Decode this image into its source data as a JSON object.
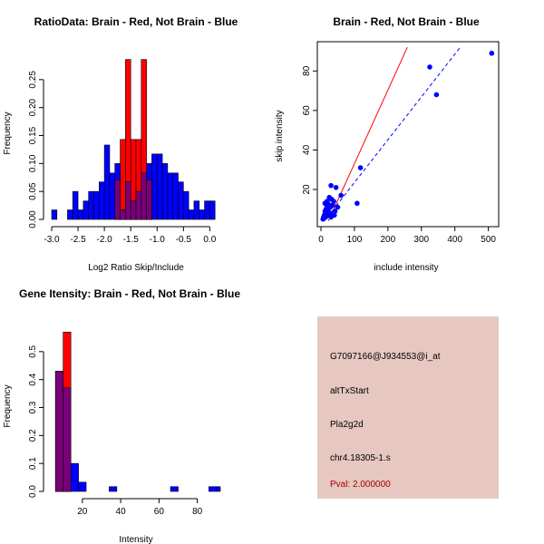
{
  "chart_data": [
    {
      "type": "bar",
      "panel": "ratio-histogram",
      "title": "RatioData: Brain - Red, Not Brain - Blue",
      "xlabel": "Log2 Ratio Skip/Include",
      "ylabel": "Frequency",
      "xlim": [
        -3.0,
        0.2
      ],
      "ylim": [
        0,
        0.3
      ],
      "xticks": [
        -3.0,
        -2.5,
        -2.0,
        -1.5,
        -1.0,
        -0.5,
        0.0
      ],
      "xtick_labels": [
        "-3.0",
        "-2.5",
        "-2.0",
        "-1.5",
        "-1.0",
        "-0.5",
        "0.0"
      ],
      "yticks": [
        0.0,
        0.05,
        0.1,
        0.15,
        0.2,
        0.25
      ],
      "ytick_labels": [
        "0.00",
        "0.05",
        "0.10",
        "0.15",
        "0.20",
        "0.25"
      ],
      "series": [
        {
          "name": "Not Brain",
          "color": "#0000ff",
          "bins": [
            [
              -3.0,
              -2.9,
              0.017
            ],
            [
              -2.9,
              -2.8,
              0
            ],
            [
              -2.8,
              -2.7,
              0
            ],
            [
              -2.7,
              -2.6,
              0.017
            ],
            [
              -2.6,
              -2.5,
              0.05
            ],
            [
              -2.5,
              -2.4,
              0.017
            ],
            [
              -2.4,
              -2.3,
              0.033
            ],
            [
              -2.3,
              -2.2,
              0.05
            ],
            [
              -2.2,
              -2.1,
              0.05
            ],
            [
              -2.1,
              -2.0,
              0.067
            ],
            [
              -2.0,
              -1.9,
              0.133
            ],
            [
              -1.9,
              -1.8,
              0.083
            ],
            [
              -1.8,
              -1.7,
              0.1
            ],
            [
              -1.7,
              -1.6,
              0.017
            ],
            [
              -1.6,
              -1.5,
              0.067
            ],
            [
              -1.5,
              -1.4,
              0.033
            ],
            [
              -1.4,
              -1.3,
              0.05
            ],
            [
              -1.3,
              -1.2,
              0.083
            ],
            [
              -1.2,
              -1.1,
              0.1
            ],
            [
              -1.1,
              -1.0,
              0.117
            ],
            [
              -1.0,
              -0.9,
              0.117
            ],
            [
              -0.9,
              -0.8,
              0.1
            ],
            [
              -0.8,
              -0.7,
              0.083
            ],
            [
              -0.7,
              -0.6,
              0.083
            ],
            [
              -0.6,
              -0.5,
              0.067
            ],
            [
              -0.5,
              -0.4,
              0.05
            ],
            [
              -0.4,
              -0.3,
              0.017
            ],
            [
              -0.3,
              -0.2,
              0.033
            ],
            [
              -0.2,
              -0.1,
              0.017
            ],
            [
              -0.1,
              0.0,
              0.033
            ],
            [
              0.0,
              0.1,
              0.033
            ]
          ]
        },
        {
          "name": "Brain",
          "color": "#ff0000",
          "bins": [
            [
              -1.8,
              -1.7,
              0.071
            ],
            [
              -1.7,
              -1.6,
              0.143
            ],
            [
              -1.6,
              -1.5,
              0.286
            ],
            [
              -1.5,
              -1.4,
              0.143
            ],
            [
              -1.4,
              -1.3,
              0.143
            ],
            [
              -1.3,
              -1.2,
              0.286
            ],
            [
              -1.2,
              -1.1,
              0.071
            ]
          ]
        }
      ]
    },
    {
      "type": "scatter",
      "panel": "intensity-scatter",
      "title": "Brain - Red, Not Brain - Blue",
      "xlabel": "include intensity",
      "ylabel": "skip intensity",
      "xlim": [
        0,
        520
      ],
      "ylim": [
        3,
        93
      ],
      "xticks": [
        0,
        100,
        200,
        300,
        400,
        500
      ],
      "xtick_labels": [
        "0",
        "100",
        "200",
        "300",
        "400",
        "500"
      ],
      "yticks": [
        20,
        40,
        60,
        80
      ],
      "ytick_labels": [
        "20",
        "40",
        "60",
        "80"
      ],
      "points": [
        [
          510,
          89
        ],
        [
          345,
          68
        ],
        [
          325,
          82
        ],
        [
          118,
          31
        ],
        [
          108,
          13
        ],
        [
          60,
          17
        ],
        [
          50,
          11
        ],
        [
          45,
          21
        ],
        [
          42,
          9
        ],
        [
          38,
          14
        ],
        [
          35,
          12
        ],
        [
          32,
          15
        ],
        [
          30,
          22
        ],
        [
          28,
          8
        ],
        [
          26,
          12
        ],
        [
          25,
          16
        ],
        [
          22,
          10
        ],
        [
          20,
          13
        ],
        [
          18,
          8
        ],
        [
          17,
          12
        ],
        [
          15,
          10
        ],
        [
          14,
          6
        ],
        [
          12,
          9
        ],
        [
          10,
          7
        ],
        [
          8,
          6
        ],
        [
          6,
          5
        ],
        [
          30,
          6
        ],
        [
          40,
          7
        ],
        [
          22,
          7
        ],
        [
          12,
          13
        ],
        [
          18,
          14
        ],
        [
          28,
          11
        ]
      ],
      "point_color": "#0000ff",
      "lines": [
        {
          "name": "Not Brain fit",
          "color": "#0000ff",
          "dash": "dashed",
          "x": [
            10,
            416
          ],
          "y": [
            4,
            92
          ]
        },
        {
          "name": "Brain fit",
          "color": "#ff0000",
          "dash": "solid",
          "x": [
            22,
            258
          ],
          "y": [
            4,
            92
          ]
        }
      ]
    },
    {
      "type": "bar",
      "panel": "intensity-histogram",
      "title": "Gene Itensity: Brain - Red, Not Brain - Blue",
      "xlabel": "Intensity",
      "ylabel": "Frequency",
      "xlim": [
        4,
        92
      ],
      "ylim": [
        0,
        0.6
      ],
      "xticks": [
        20,
        40,
        60,
        80
      ],
      "xtick_labels": [
        "20",
        "40",
        "60",
        "80"
      ],
      "yticks": [
        0.0,
        0.1,
        0.2,
        0.3,
        0.4,
        0.5
      ],
      "ytick_labels": [
        "0.0",
        "0.1",
        "0.2",
        "0.3",
        "0.4",
        "0.5"
      ],
      "series": [
        {
          "name": "Not Brain",
          "color": "#0000ff",
          "bins": [
            [
              6,
              10,
              0.43
            ],
            [
              10,
              14,
              0.37
            ],
            [
              14,
              18,
              0.1
            ],
            [
              18,
              22,
              0.033
            ],
            [
              22,
              26,
              0
            ],
            [
              26,
              30,
              0
            ],
            [
              30,
              34,
              0
            ],
            [
              34,
              38,
              0.017
            ],
            [
              62,
              66,
              0
            ],
            [
              66,
              70,
              0.017
            ],
            [
              86,
              90,
              0.017
            ],
            [
              90,
              92,
              0.017
            ]
          ]
        },
        {
          "name": "Brain",
          "color": "#ff0000",
          "bins": [
            [
              6,
              10,
              0.43
            ],
            [
              10,
              14,
              0.57
            ]
          ]
        }
      ]
    }
  ],
  "info": {
    "probe_id": "G7097166@J934553@i_at",
    "event_type": "altTxStart",
    "gene": "Pla2g2d",
    "locus": "chr4.18305-1.s",
    "pval": "Pval: 2.000000",
    "background": "#e6c8c0"
  }
}
